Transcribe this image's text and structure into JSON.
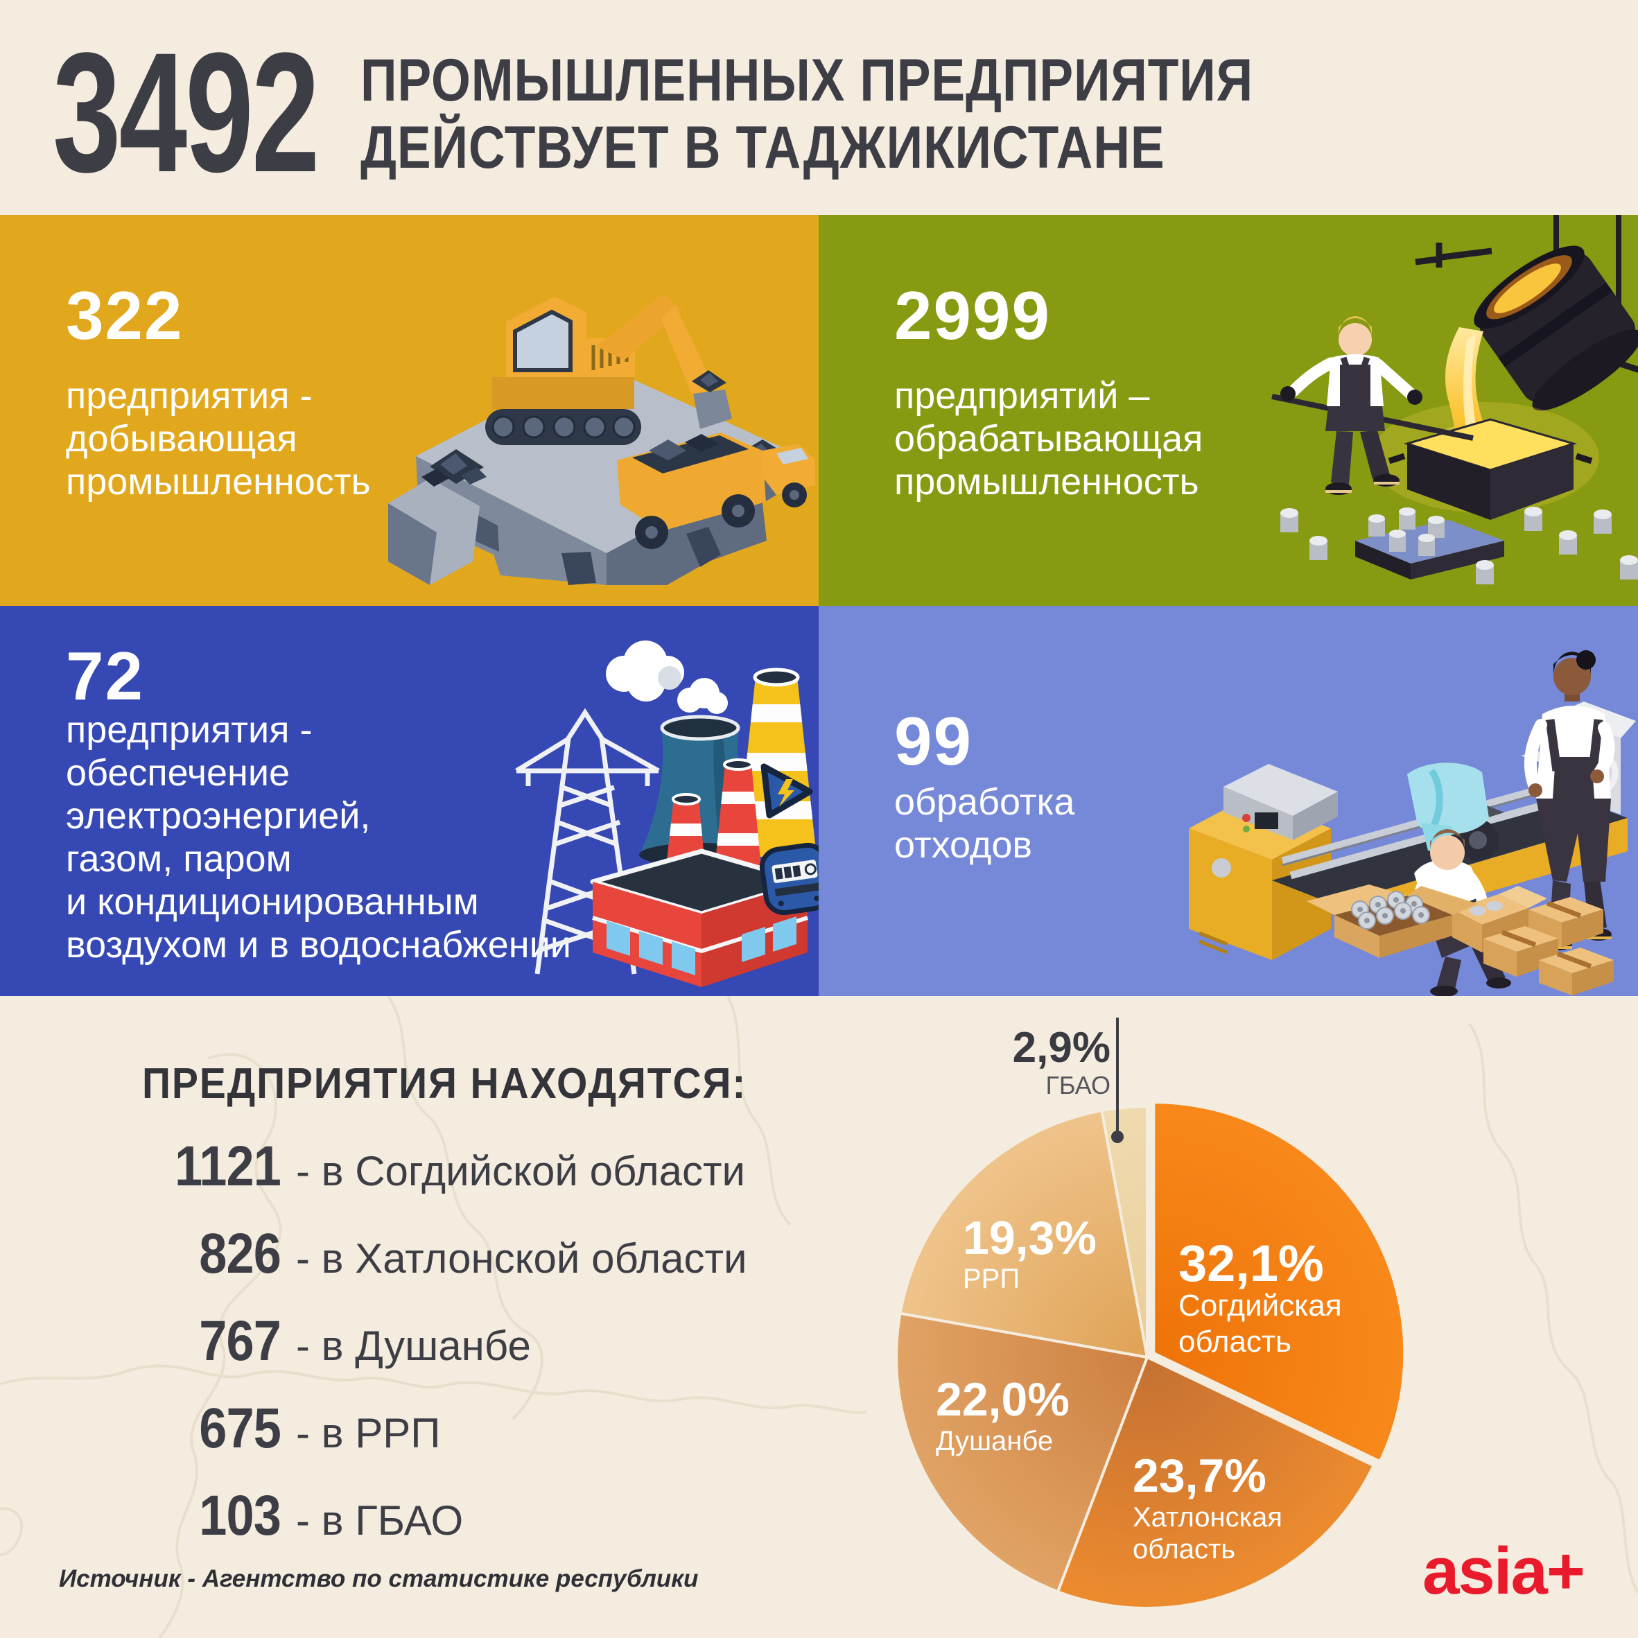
{
  "header": {
    "big_number": "3492",
    "title_line1": "ПРОМЫШЛЕННЫХ ПРЕДПРИЯТИЯ",
    "title_line2": "ДЕЙСТВУЕТ В ТАДЖИКИСТАНЕ"
  },
  "quadrants": [
    {
      "id": "mining",
      "bg": "#e1a71d",
      "number": "322",
      "lines": [
        "предприятия -",
        "добывающая",
        "промышленность"
      ],
      "alt": "excavator-loading-coal-truck"
    },
    {
      "id": "manufacturing",
      "bg": "#879a12",
      "number": "2999",
      "lines": [
        "предприятий –",
        "обрабатывающая",
        "промышленность"
      ],
      "alt": "worker-pouring-molten-metal"
    },
    {
      "id": "utilities",
      "bg": "#3548b4",
      "number": "72",
      "lines": [
        "предприятия -",
        "обеспечение",
        "электроэнергией,",
        "газом, паром",
        "и кондиционированным",
        "воздухом и в водоснабжении"
      ],
      "alt": "power-plant-chimneys-pylon"
    },
    {
      "id": "waste",
      "bg": "#7689d8",
      "number": "99",
      "lines": [
        "обработка",
        "отходов"
      ],
      "alt": "lathe-machine-workers-boxes"
    }
  ],
  "location": {
    "heading": "ПРЕДПРИЯТИЯ НАХОДЯТСЯ:",
    "items": [
      {
        "value": "1121",
        "label": "- в Согдийской области"
      },
      {
        "value": "826",
        "label": "- в Хатлонской области"
      },
      {
        "value": "767",
        "label": "- в Душанбе"
      },
      {
        "value": "675",
        "label": "- в РРП"
      },
      {
        "value": "103",
        "label": "- в ГБАО"
      }
    ]
  },
  "chart_data": {
    "type": "pie",
    "title": "ПРЕДПРИЯТИЯ НАХОДЯТСЯ:",
    "direction": "clockwise",
    "start_angle_deg": 0,
    "legend_position": "inside",
    "slices": [
      {
        "label": "Согдийская область",
        "label_lines": [
          "Согдийская",
          "область"
        ],
        "display": "32,1%",
        "value_pct": 32.1,
        "color_inner": "#ee7309",
        "color_outer": "#f98a1c",
        "exploded": true
      },
      {
        "label": "Хатлонская область",
        "label_lines": [
          "Хатлонская",
          "область"
        ],
        "display": "23,7%",
        "value_pct": 23.7,
        "color_inner": "#c47133",
        "color_outer": "#f08d2e",
        "exploded": false
      },
      {
        "label": "Душанбе",
        "label_lines": [
          "Душанбе"
        ],
        "display": "22,0%",
        "value_pct": 22.0,
        "color_inner": "#cd8041",
        "color_outer": "#e2a668",
        "exploded": false
      },
      {
        "label": "РРП",
        "label_lines": [
          "РРП"
        ],
        "display": "19,3%",
        "value_pct": 19.3,
        "color_inner": "#dfa255",
        "color_outer": "#f0c68f",
        "exploded": false
      },
      {
        "label": "ГБАО",
        "label_lines": [
          "ГБАО"
        ],
        "display": "2,9%",
        "value_pct": 2.9,
        "color_inner": "#e9cd97",
        "color_outer": "#f0dcb2",
        "exploded": false,
        "callout": true
      }
    ]
  },
  "footer": {
    "source": "Источник - Агентство по статистике республики",
    "logo": "asia+"
  },
  "colors": {
    "background": "#f4ecdf",
    "dark_text": "#3d3e45",
    "accent_red": "#ea1a2d",
    "quad_mining": "#e1a71d",
    "quad_manufacturing": "#879a12",
    "quad_utilities": "#3548b4",
    "quad_waste": "#7689d8"
  }
}
